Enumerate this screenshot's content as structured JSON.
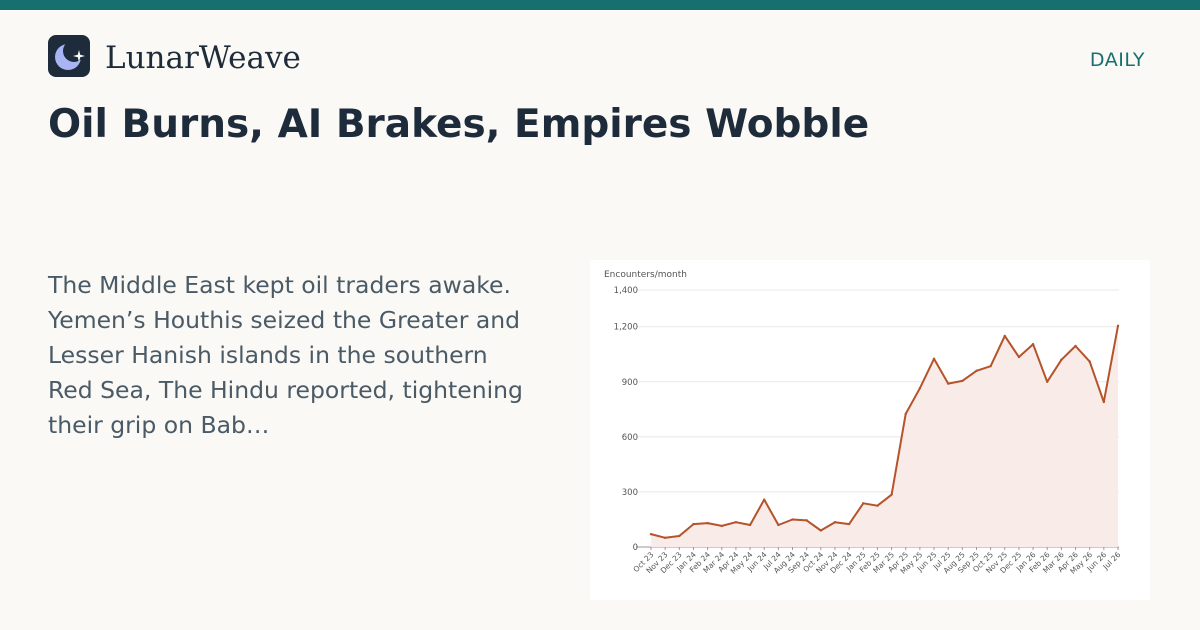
{
  "brand": {
    "name": "LunarWeave",
    "logo_icon": "moon-star-icon"
  },
  "section_label": "DAILY",
  "headline": "Oil Burns, AI Brakes, Empires Wobble",
  "summary": "The Middle East kept oil traders awake. Yemen’s Houthis seized the Greater and Lesser Hanish islands in the southern Red Sea, The Hindu reported, tightening their grip on Bab…",
  "colors": {
    "accent": "#17706e",
    "line": "#b5532a",
    "fill": "#f9ece8",
    "ink": "#1e2b3a"
  },
  "chart_data": {
    "type": "area",
    "ylabel": "Encounters/month",
    "ylim": [
      0,
      1400
    ],
    "yticks": [
      0,
      300,
      600,
      900,
      1200,
      1400
    ],
    "ytick_labels": [
      "0",
      "300",
      "600",
      "900",
      "1,200",
      "1,400"
    ],
    "grid": true,
    "legend": "none",
    "categories": [
      "Oct 23",
      "Nov 23",
      "Dec 23",
      "Jan 24",
      "Feb 24",
      "Mar 24",
      "Apr 24",
      "May 24",
      "Jun 24",
      "Jul 24",
      "Aug 24",
      "Sep 24",
      "Oct 24",
      "Nov 24",
      "Dec 24",
      "Jan 25",
      "Feb 25",
      "Mar 25",
      "Apr 25",
      "May 25",
      "Jun 25",
      "Jul 25",
      "Aug 25",
      "Sep 25",
      "Oct 25",
      "Nov 25",
      "Dec 25",
      "Jan 26",
      "Feb 26",
      "Mar 26",
      "Apr 26",
      "May 26",
      "Jun 26",
      "Jul 26"
    ],
    "values": [
      70,
      50,
      60,
      125,
      130,
      115,
      135,
      120,
      258,
      120,
      150,
      145,
      90,
      135,
      125,
      238,
      225,
      285,
      725,
      865,
      1025,
      890,
      905,
      960,
      985,
      1150,
      1035,
      1105,
      900,
      1020,
      1095,
      1010,
      790,
      1205
    ]
  }
}
